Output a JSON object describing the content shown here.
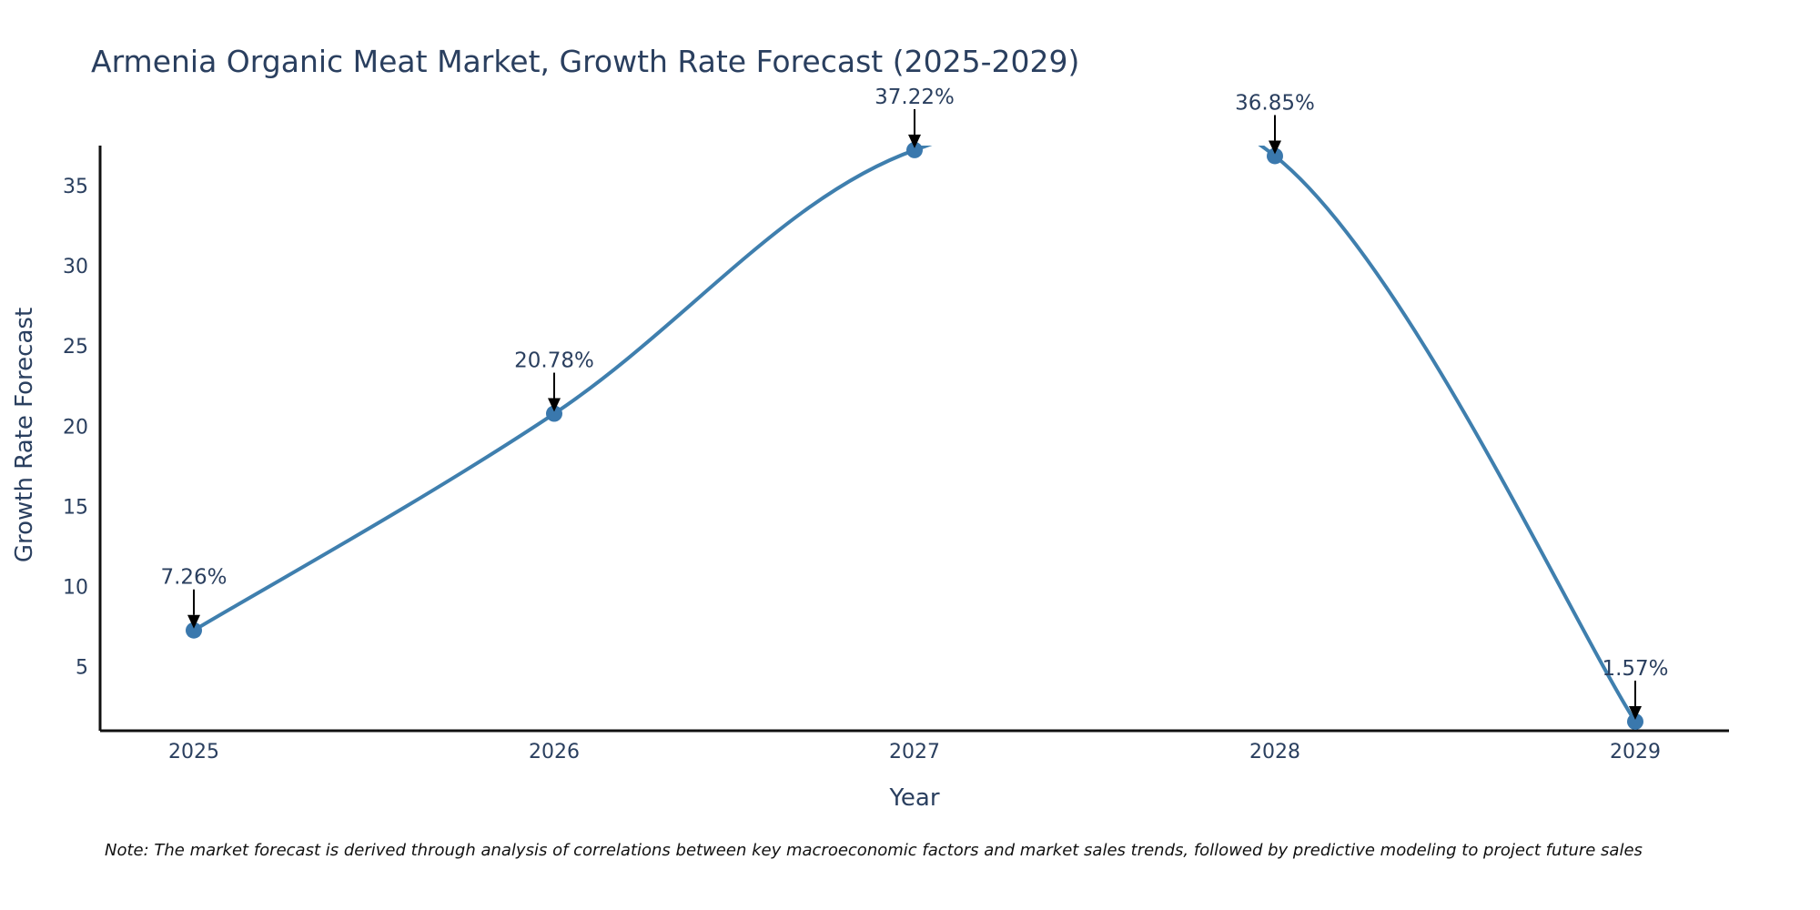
{
  "chart_data": {
    "type": "line",
    "title": "Armenia Organic Meat Market, Growth Rate Forecast (2025-2029)",
    "xlabel": "Year",
    "ylabel": "Growth Rate Forecast",
    "categories": [
      "2025",
      "2026",
      "2027",
      "2028",
      "2029"
    ],
    "series": [
      {
        "name": "Growth Rate Forecast",
        "values": [
          7.26,
          20.78,
          37.22,
          36.85,
          1.57
        ],
        "labels": [
          "7.26%",
          "20.78%",
          "37.22%",
          "36.85%",
          "1.57%"
        ]
      }
    ],
    "yticks": [
      "5",
      "10",
      "15",
      "20",
      "25",
      "30",
      "35"
    ],
    "ylim": [
      1,
      37.5
    ],
    "grid": false,
    "line_color": "#3f7fae",
    "marker_color": "#3a78ad",
    "note": "Note: The market forecast is derived through analysis of correlations between key macroeconomic factors and market sales trends, followed by predictive modeling to project future sales"
  }
}
